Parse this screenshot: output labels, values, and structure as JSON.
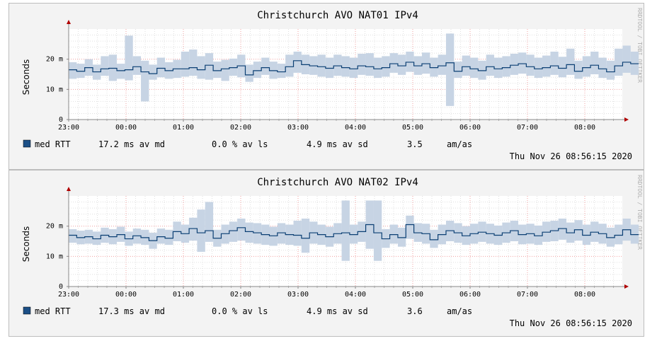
{
  "colors": {
    "background": "#f3f3f3",
    "plot_background": "#ffffff",
    "grid_minor": "#e0e0e0",
    "grid_major": "#f0a0a0",
    "line": "#0b3f73",
    "band": "#c7d4e4",
    "legend_swatch": "#1c4f86",
    "axis": "#888888",
    "axis_arrow": "#b00000"
  },
  "watermark": "RRDTOOL / TOBI OETIKER",
  "panels": [
    {
      "title": "Christchurch AVO NAT01 IPv4",
      "legend": {
        "series": "med RTT",
        "avg": "17.2 ms av md",
        "loss": "0.0 % av ls",
        "sd": "4.9 ms av sd",
        "ratio": "3.5",
        "unit": "am/as"
      },
      "timestamp": "Thu Nov 26 08:56:15 2020"
    },
    {
      "title": "Christchurch AVO NAT02 IPv4",
      "legend": {
        "series": "med RTT",
        "avg": "17.3 ms av md",
        "loss": "0.0 % av ls",
        "sd": "4.9 ms av sd",
        "ratio": "3.6",
        "unit": "am/as"
      },
      "timestamp": "Thu Nov 26 08:56:15 2020"
    }
  ],
  "chart_data": [
    {
      "type": "line",
      "title": "Christchurch AVO NAT01 IPv4",
      "ylabel": "Seconds",
      "ylim": [
        0,
        0.03
      ],
      "yticks": [
        {
          "value": 0,
          "label": "0"
        },
        {
          "value": 0.01,
          "label": "10 m"
        },
        {
          "value": 0.02,
          "label": "20 m"
        }
      ],
      "x_tick_labels": [
        "23:00",
        "00:00",
        "01:00",
        "02:00",
        "03:00",
        "04:00",
        "05:00",
        "06:00",
        "07:00",
        "08:00"
      ],
      "x_hours_range": [
        0,
        9.94
      ],
      "series": [
        {
          "name": "med RTT",
          "x": [
            0.0,
            0.14,
            0.28,
            0.42,
            0.56,
            0.7,
            0.84,
            0.98,
            1.12,
            1.26,
            1.4,
            1.54,
            1.68,
            1.82,
            1.96,
            2.1,
            2.24,
            2.38,
            2.52,
            2.66,
            2.8,
            2.94,
            3.08,
            3.22,
            3.36,
            3.5,
            3.64,
            3.78,
            3.92,
            4.06,
            4.2,
            4.34,
            4.48,
            4.62,
            4.76,
            4.9,
            5.04,
            5.18,
            5.32,
            5.46,
            5.6,
            5.74,
            5.88,
            6.02,
            6.16,
            6.3,
            6.44,
            6.58,
            6.72,
            6.86,
            7.0,
            7.14,
            7.28,
            7.42,
            7.56,
            7.7,
            7.84,
            7.98,
            8.12,
            8.26,
            8.4,
            8.54,
            8.68,
            8.82,
            8.96,
            9.1,
            9.24,
            9.38,
            9.52,
            9.66,
            9.8
          ],
          "values": [
            0.0165,
            0.016,
            0.0172,
            0.0158,
            0.0168,
            0.017,
            0.0162,
            0.0165,
            0.0175,
            0.0158,
            0.0152,
            0.017,
            0.0162,
            0.0168,
            0.0168,
            0.0172,
            0.0165,
            0.018,
            0.0162,
            0.0168,
            0.0172,
            0.0178,
            0.0148,
            0.0162,
            0.0172,
            0.0162,
            0.0158,
            0.0175,
            0.0195,
            0.0182,
            0.0178,
            0.0175,
            0.017,
            0.0178,
            0.0172,
            0.0168,
            0.0178,
            0.0175,
            0.0168,
            0.0172,
            0.0185,
            0.0178,
            0.019,
            0.0178,
            0.0185,
            0.0172,
            0.0178,
            0.0188,
            0.016,
            0.0175,
            0.0168,
            0.0162,
            0.0175,
            0.0168,
            0.0172,
            0.018,
            0.0185,
            0.0175,
            0.0168,
            0.0172,
            0.0178,
            0.017,
            0.0182,
            0.016,
            0.0172,
            0.018,
            0.0168,
            0.0158,
            0.0178,
            0.019,
            0.0185
          ],
          "band_low": [
            0.0135,
            0.0138,
            0.0145,
            0.0132,
            0.0145,
            0.0128,
            0.0135,
            0.013,
            0.0148,
            0.006,
            0.0132,
            0.014,
            0.0135,
            0.0138,
            0.0142,
            0.0145,
            0.0135,
            0.0132,
            0.0138,
            0.0128,
            0.0145,
            0.014,
            0.0125,
            0.0138,
            0.0148,
            0.0135,
            0.0138,
            0.0142,
            0.0155,
            0.015,
            0.0148,
            0.0142,
            0.0138,
            0.0145,
            0.0142,
            0.0138,
            0.0148,
            0.0145,
            0.0138,
            0.0142,
            0.0155,
            0.0148,
            0.0158,
            0.0148,
            0.0152,
            0.0142,
            0.0148,
            0.0045,
            0.0138,
            0.0145,
            0.0138,
            0.0132,
            0.0145,
            0.0138,
            0.0142,
            0.0148,
            0.0152,
            0.0145,
            0.0138,
            0.0142,
            0.0148,
            0.014,
            0.0148,
            0.0135,
            0.0142,
            0.015,
            0.0138,
            0.0132,
            0.0145,
            0.0155,
            0.0148
          ],
          "band_high": [
            0.019,
            0.0185,
            0.02,
            0.0182,
            0.021,
            0.0215,
            0.0185,
            0.0278,
            0.021,
            0.0195,
            0.0182,
            0.0205,
            0.019,
            0.0198,
            0.0225,
            0.0232,
            0.021,
            0.022,
            0.0192,
            0.0198,
            0.0202,
            0.0215,
            0.0182,
            0.0192,
            0.0205,
            0.0192,
            0.0185,
            0.0215,
            0.0225,
            0.0215,
            0.021,
            0.0215,
            0.0205,
            0.0215,
            0.021,
            0.0205,
            0.0218,
            0.022,
            0.0205,
            0.021,
            0.022,
            0.0215,
            0.0225,
            0.021,
            0.0222,
            0.0205,
            0.0215,
            0.0285,
            0.0192,
            0.0212,
            0.0205,
            0.0195,
            0.0215,
            0.0205,
            0.021,
            0.0218,
            0.0222,
            0.0215,
            0.0205,
            0.0212,
            0.0225,
            0.0208,
            0.0235,
            0.0195,
            0.021,
            0.0225,
            0.0205,
            0.0195,
            0.0235,
            0.0245,
            0.0225
          ]
        }
      ]
    },
    {
      "type": "line",
      "title": "Christchurch AVO NAT02 IPv4",
      "ylabel": "Seconds",
      "ylim": [
        0,
        0.03
      ],
      "yticks": [
        {
          "value": 0,
          "label": "0"
        },
        {
          "value": 0.01,
          "label": "10 m"
        },
        {
          "value": 0.02,
          "label": "20 m"
        }
      ],
      "x_tick_labels": [
        "23:00",
        "00:00",
        "01:00",
        "02:00",
        "03:00",
        "04:00",
        "05:00",
        "06:00",
        "07:00",
        "08:00"
      ],
      "x_hours_range": [
        0,
        9.94
      ],
      "series": [
        {
          "name": "med RTT",
          "x": [
            0.0,
            0.14,
            0.28,
            0.42,
            0.56,
            0.7,
            0.84,
            0.98,
            1.12,
            1.26,
            1.4,
            1.54,
            1.68,
            1.82,
            1.96,
            2.1,
            2.24,
            2.38,
            2.52,
            2.66,
            2.8,
            2.94,
            3.08,
            3.22,
            3.36,
            3.5,
            3.64,
            3.78,
            3.92,
            4.06,
            4.2,
            4.34,
            4.48,
            4.62,
            4.76,
            4.9,
            5.04,
            5.18,
            5.32,
            5.46,
            5.6,
            5.74,
            5.88,
            6.02,
            6.16,
            6.3,
            6.44,
            6.58,
            6.72,
            6.86,
            7.0,
            7.14,
            7.28,
            7.42,
            7.56,
            7.7,
            7.84,
            7.98,
            8.12,
            8.26,
            8.4,
            8.54,
            8.68,
            8.82,
            8.96,
            9.1,
            9.24,
            9.38,
            9.52,
            9.66,
            9.8
          ],
          "values": [
            0.017,
            0.0162,
            0.0165,
            0.0158,
            0.017,
            0.0165,
            0.0172,
            0.0158,
            0.0168,
            0.0162,
            0.0152,
            0.0165,
            0.016,
            0.0182,
            0.0175,
            0.0192,
            0.0178,
            0.0185,
            0.016,
            0.0175,
            0.0185,
            0.0195,
            0.0182,
            0.0178,
            0.0172,
            0.0168,
            0.0178,
            0.0172,
            0.017,
            0.016,
            0.0178,
            0.0172,
            0.0165,
            0.0175,
            0.0178,
            0.0172,
            0.0182,
            0.0205,
            0.0178,
            0.0158,
            0.0172,
            0.0162,
            0.0205,
            0.0178,
            0.0175,
            0.0155,
            0.0172,
            0.0185,
            0.0178,
            0.0168,
            0.0175,
            0.018,
            0.0175,
            0.017,
            0.0178,
            0.0185,
            0.0172,
            0.0175,
            0.0168,
            0.018,
            0.0185,
            0.0192,
            0.0178,
            0.0188,
            0.017,
            0.018,
            0.0175,
            0.0162,
            0.017,
            0.0188,
            0.0172
          ],
          "band_low": [
            0.0145,
            0.014,
            0.0142,
            0.0138,
            0.0145,
            0.014,
            0.0148,
            0.0135,
            0.0142,
            0.0138,
            0.0125,
            0.0142,
            0.0138,
            0.015,
            0.0145,
            0.0152,
            0.0115,
            0.0148,
            0.0132,
            0.0142,
            0.0148,
            0.0152,
            0.0145,
            0.0142,
            0.0138,
            0.0135,
            0.0142,
            0.0138,
            0.0135,
            0.0112,
            0.0142,
            0.0138,
            0.0132,
            0.0142,
            0.0085,
            0.0142,
            0.0148,
            0.0125,
            0.0085,
            0.0128,
            0.0142,
            0.0132,
            0.0158,
            0.0148,
            0.0142,
            0.0128,
            0.014,
            0.015,
            0.0145,
            0.0138,
            0.0142,
            0.0148,
            0.0142,
            0.0138,
            0.0145,
            0.015,
            0.014,
            0.0142,
            0.0138,
            0.0148,
            0.015,
            0.0155,
            0.0145,
            0.0152,
            0.0138,
            0.0148,
            0.0142,
            0.0132,
            0.014,
            0.0152,
            0.0142
          ],
          "band_high": [
            0.019,
            0.0185,
            0.0188,
            0.0182,
            0.0195,
            0.019,
            0.0198,
            0.0182,
            0.0192,
            0.0188,
            0.0178,
            0.0192,
            0.0188,
            0.0215,
            0.0205,
            0.0228,
            0.0255,
            0.028,
            0.0188,
            0.0205,
            0.0215,
            0.0225,
            0.0212,
            0.021,
            0.0205,
            0.0198,
            0.021,
            0.0205,
            0.0218,
            0.0225,
            0.0215,
            0.0205,
            0.0198,
            0.021,
            0.0285,
            0.0205,
            0.0215,
            0.0285,
            0.0285,
            0.019,
            0.0205,
            0.0195,
            0.0235,
            0.021,
            0.0208,
            0.0188,
            0.0205,
            0.0218,
            0.021,
            0.02,
            0.0208,
            0.0215,
            0.0208,
            0.0202,
            0.0212,
            0.0218,
            0.0205,
            0.0208,
            0.0202,
            0.0215,
            0.0218,
            0.0225,
            0.0212,
            0.022,
            0.0205,
            0.0215,
            0.0208,
            0.0195,
            0.0205,
            0.0225,
            0.0205
          ]
        }
      ]
    }
  ]
}
